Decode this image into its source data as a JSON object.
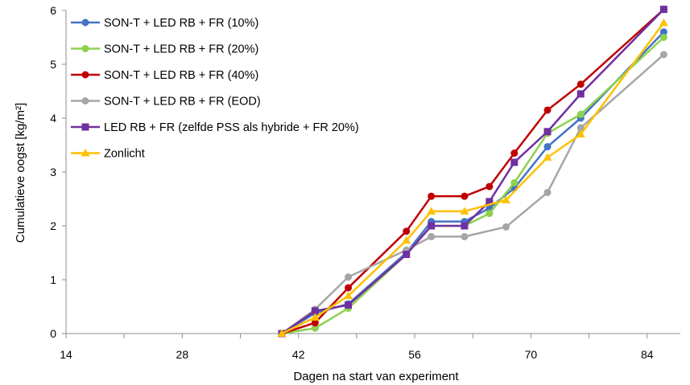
{
  "chart_data": {
    "type": "line",
    "title": "",
    "xlabel": "Dagen na start van experiment",
    "ylabel": "Cumulatieve oogst [kg/m²]",
    "xlim": [
      14,
      88
    ],
    "ylim": [
      0,
      6
    ],
    "xticks": [
      "14",
      "28",
      "42",
      "56",
      "70",
      "84"
    ],
    "yticks": [
      "0",
      "1",
      "2",
      "3",
      "4",
      "5",
      "6"
    ],
    "grid": false,
    "legend_position": "top-left",
    "series": [
      {
        "name": "SON-T + LED RB + FR (10%)",
        "color": "#4472C4",
        "marker": "circle",
        "x": [
          40,
          44,
          48,
          55,
          58,
          62,
          65,
          68,
          72,
          76,
          86
        ],
        "y": [
          0,
          0.38,
          0.55,
          1.5,
          2.08,
          2.08,
          2.33,
          2.7,
          3.47,
          4.0,
          5.6
        ]
      },
      {
        "name": "SON-T + LED RB + FR (20%)",
        "color": "#8DD14F",
        "marker": "circle",
        "x": [
          40,
          44,
          48,
          55,
          58,
          62,
          65,
          68,
          72,
          76,
          86
        ],
        "y": [
          0,
          0.1,
          0.47,
          1.47,
          2.0,
          2.0,
          2.23,
          2.8,
          3.72,
          4.07,
          5.5
        ]
      },
      {
        "name": "SON-T + LED RB + FR (40%)",
        "color": "#C00000",
        "marker": "circle",
        "x": [
          40,
          44,
          48,
          55,
          58,
          62,
          65,
          68,
          72,
          76,
          86
        ],
        "y": [
          0,
          0.2,
          0.85,
          1.9,
          2.55,
          2.55,
          2.73,
          3.35,
          4.15,
          4.63,
          6.02
        ]
      },
      {
        "name": "SON-T + LED RB + FR (EOD)",
        "color": "#A6A6A6",
        "marker": "circle",
        "x": [
          40,
          44,
          48,
          55,
          58,
          62,
          67,
          72,
          76,
          86
        ],
        "y": [
          0,
          0.45,
          1.05,
          1.55,
          1.8,
          1.8,
          1.98,
          2.62,
          3.82,
          5.18
        ]
      },
      {
        "name": "LED RB + FR (zelfde PSS als hybride + FR 20%)",
        "color": "#7030A0",
        "marker": "square",
        "x": [
          40,
          44,
          48,
          55,
          58,
          62,
          65,
          68,
          72,
          76,
          86
        ],
        "y": [
          0,
          0.42,
          0.53,
          1.47,
          2.0,
          2.0,
          2.45,
          3.18,
          3.75,
          4.45,
          6.02
        ]
      },
      {
        "name": "Zonlicht",
        "color": "#FFC000",
        "marker": "triangle",
        "x": [
          40,
          44,
          48,
          55,
          58,
          62,
          67,
          72,
          76,
          86
        ],
        "y": [
          0,
          0.3,
          0.7,
          1.73,
          2.27,
          2.27,
          2.48,
          3.27,
          3.7,
          5.77
        ]
      }
    ]
  }
}
